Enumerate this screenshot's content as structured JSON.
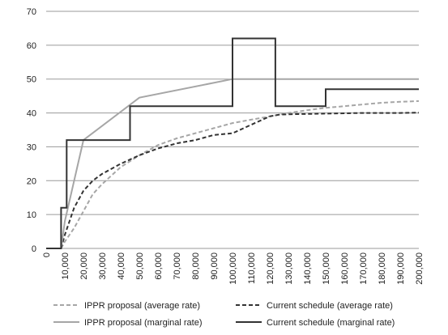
{
  "chart_data": {
    "type": "line",
    "title": "",
    "xlabel": "",
    "ylabel": "",
    "xlim": [
      0,
      200000
    ],
    "ylim": [
      0,
      70
    ],
    "yticks": [
      0,
      10,
      20,
      30,
      40,
      50,
      60,
      70
    ],
    "xticks": [
      0,
      10000,
      20000,
      30000,
      40000,
      50000,
      60000,
      70000,
      80000,
      90000,
      100000,
      110000,
      120000,
      130000,
      140000,
      150000,
      160000,
      170000,
      180000,
      190000,
      200000
    ],
    "xtick_labels": [
      "0",
      "10,000",
      "20,000",
      "30,000",
      "40,000",
      "50,000",
      "60,000",
      "70,000",
      "80,000",
      "90,000",
      "100,000",
      "110,000",
      "120,000",
      "130,000",
      "140,000",
      "150,000",
      "160,000",
      "170,000",
      "180,000",
      "190,000",
      "200,000"
    ],
    "grid": "horizontal",
    "legend_position": "bottom",
    "series": [
      {
        "name": "IPPR proposal (average rate)",
        "color": "#a6a6a6",
        "dash": "dashed",
        "width": 2,
        "x": [
          8000,
          10000,
          15000,
          20000,
          25000,
          30000,
          40000,
          50000,
          60000,
          70000,
          80000,
          90000,
          100000,
          110000,
          120000,
          130000,
          140000,
          150000,
          160000,
          170000,
          180000,
          190000,
          200000
        ],
        "y": [
          0,
          2,
          6,
          11,
          16,
          19,
          24,
          27.5,
          30.5,
          32.5,
          34,
          35.5,
          37,
          38,
          39,
          40,
          40.8,
          41.5,
          42,
          42.5,
          43,
          43.3,
          43.5
        ]
      },
      {
        "name": "Current schedule (average rate)",
        "color": "#333333",
        "dash": "dashed",
        "width": 2,
        "x": [
          8000,
          10000,
          15000,
          20000,
          25000,
          30000,
          40000,
          50000,
          60000,
          70000,
          80000,
          90000,
          100000,
          110000,
          120000,
          125000,
          130000,
          140000,
          150000,
          160000,
          170000,
          180000,
          190000,
          200000
        ],
        "y": [
          0,
          4,
          12,
          17,
          20,
          22,
          25,
          27.5,
          29.5,
          31,
          32,
          33.5,
          34,
          36.5,
          39,
          39.5,
          39.6,
          39.7,
          39.8,
          39.9,
          40,
          40,
          40,
          40.1
        ]
      },
      {
        "name": "IPPR proposal (marginal rate)",
        "color": "#a6a6a6",
        "dash": "solid",
        "width": 2,
        "x": [
          8000,
          10000,
          20000,
          50000,
          100000,
          200000
        ],
        "y": [
          0,
          8,
          32,
          44.5,
          50,
          50
        ]
      },
      {
        "name": "Current schedule (marginal rate)",
        "color": "#333333",
        "dash": "solid",
        "width": 2,
        "x": [
          0,
          8000,
          8000,
          11000,
          11000,
          45000,
          45000,
          100000,
          100000,
          123000,
          123000,
          150000,
          150000,
          200000
        ],
        "y": [
          0,
          0,
          12,
          12,
          32,
          32,
          42,
          42,
          62,
          62,
          42,
          42,
          47,
          47
        ]
      }
    ]
  },
  "legend": {
    "items": [
      "IPPR proposal (average rate)",
      "Current schedule (average rate)",
      "IPPR proposal (marginal rate)",
      "Current schedule (marginal rate)"
    ]
  }
}
